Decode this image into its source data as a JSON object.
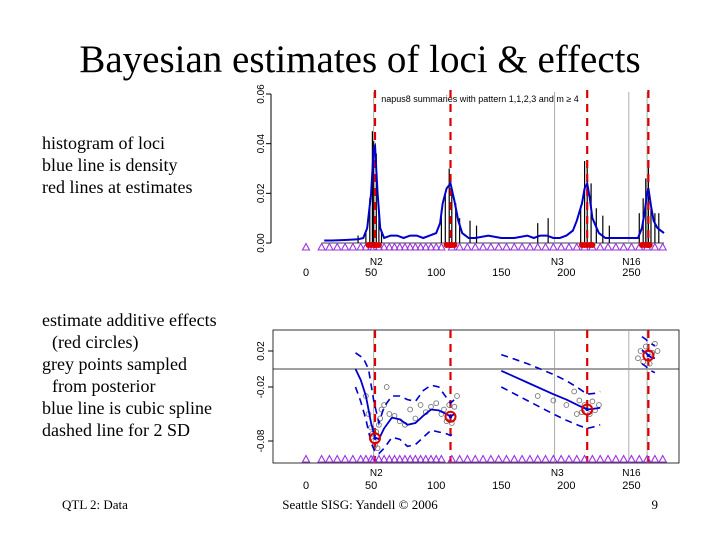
{
  "slide": {
    "title": "Bayesian estimates of  loci & effects",
    "upper_text": [
      "histogram of loci",
      "blue line is density",
      "red lines at estimates"
    ],
    "lower_text": [
      "estimate additive effects",
      "(red circles)",
      "grey points sampled",
      "from posterior",
      "blue line is cubic spline",
      "dashed line for 2 SD"
    ],
    "footer_left": "QTL 2: Data",
    "footer_center": "Seattle SISG: Yandell © 2006",
    "page_number": "9"
  },
  "colors": {
    "density": "#0000cc",
    "estimate": "#dd0000",
    "marker": "#9933dd",
    "posterior": "#777777",
    "axis": "#000000"
  },
  "chart_data": [
    {
      "type": "bar",
      "title": "napus8 summaries with pattern 1,1,2,3 and m ≥ 4",
      "xlim": [
        0,
        275
      ],
      "ylim": [
        0,
        0.06
      ],
      "x_ticks": [
        0,
        50,
        100,
        150,
        200,
        250
      ],
      "y_ticks": [
        0.0,
        0.02,
        0.04,
        0.06
      ],
      "y_tick_labels": [
        "0.00",
        "0.02",
        "0.04",
        "0.06"
      ],
      "chromosome_labels": [
        {
          "x": 54,
          "label": "N2"
        },
        {
          "x": 193,
          "label": "N3"
        },
        {
          "x": 250,
          "label": "N16"
        }
      ],
      "chromosome_boundaries": [
        52,
        191,
        248,
        262
      ],
      "estimates": [
        53,
        111,
        216,
        263
      ],
      "density": {
        "x": [
          14,
          20,
          30,
          40,
          44,
          47,
          50,
          52,
          53,
          55,
          57,
          60,
          65,
          70,
          75,
          80,
          85,
          90,
          95,
          100,
          103,
          105,
          108,
          111,
          114,
          117,
          120,
          125,
          130,
          140,
          150,
          160,
          170,
          175,
          180,
          185,
          190,
          195,
          200,
          205,
          208,
          212,
          214,
          216,
          218,
          220,
          225,
          230,
          235,
          240,
          245,
          250,
          255,
          258,
          260,
          262,
          263,
          265,
          267,
          270,
          275
        ],
        "y": [
          0.001,
          0.001,
          0.0012,
          0.0015,
          0.002,
          0.006,
          0.02,
          0.038,
          0.039,
          0.02,
          0.006,
          0.002,
          0.003,
          0.003,
          0.002,
          0.003,
          0.003,
          0.002,
          0.003,
          0.004,
          0.008,
          0.016,
          0.022,
          0.024,
          0.017,
          0.009,
          0.004,
          0.002,
          0.002,
          0.003,
          0.002,
          0.002,
          0.003,
          0.002,
          0.003,
          0.003,
          0.002,
          0.002,
          0.003,
          0.005,
          0.009,
          0.016,
          0.022,
          0.024,
          0.018,
          0.01,
          0.004,
          0.002,
          0.002,
          0.002,
          0.002,
          0.002,
          0.002,
          0.006,
          0.012,
          0.02,
          0.022,
          0.015,
          0.009,
          0.006,
          0.004
        ]
      },
      "histogram_spikes": [
        {
          "x": 40,
          "y": 0.003
        },
        {
          "x": 46,
          "y": 0.005
        },
        {
          "x": 49,
          "y": 0.018
        },
        {
          "x": 51,
          "y": 0.045
        },
        {
          "x": 52,
          "y": 0.041
        },
        {
          "x": 54,
          "y": 0.036
        },
        {
          "x": 56,
          "y": 0.012
        },
        {
          "x": 58,
          "y": 0.005
        },
        {
          "x": 104,
          "y": 0.013
        },
        {
          "x": 107,
          "y": 0.02
        },
        {
          "x": 110,
          "y": 0.03
        },
        {
          "x": 112,
          "y": 0.022
        },
        {
          "x": 115,
          "y": 0.016
        },
        {
          "x": 118,
          "y": 0.01
        },
        {
          "x": 126,
          "y": 0.009
        },
        {
          "x": 131,
          "y": 0.007
        },
        {
          "x": 178,
          "y": 0.008
        },
        {
          "x": 186,
          "y": 0.01
        },
        {
          "x": 211,
          "y": 0.015
        },
        {
          "x": 214,
          "y": 0.033
        },
        {
          "x": 216,
          "y": 0.032
        },
        {
          "x": 219,
          "y": 0.024
        },
        {
          "x": 223,
          "y": 0.014
        },
        {
          "x": 228,
          "y": 0.011
        },
        {
          "x": 233,
          "y": 0.007
        },
        {
          "x": 256,
          "y": 0.012
        },
        {
          "x": 259,
          "y": 0.018
        },
        {
          "x": 261,
          "y": 0.026
        },
        {
          "x": 263,
          "y": 0.031
        },
        {
          "x": 265,
          "y": 0.014
        },
        {
          "x": 268,
          "y": 0.012
        },
        {
          "x": 271,
          "y": 0.012
        }
      ],
      "estimate_points_x": [
        48,
        50,
        52,
        53,
        54,
        56,
        108,
        110,
        111,
        112,
        114,
        212,
        214,
        216,
        218,
        220,
        258,
        260,
        262,
        263,
        264
      ],
      "marker_positions": [
        0,
        12,
        18,
        24,
        30,
        36,
        42,
        46,
        50,
        52,
        56,
        60,
        64,
        68,
        72,
        76,
        80,
        84,
        88,
        92,
        96,
        100,
        104,
        112,
        118,
        124,
        130,
        136,
        142,
        148,
        154,
        160,
        166,
        172,
        178,
        184,
        190,
        196,
        202,
        208,
        214,
        220,
        226,
        232,
        238,
        244,
        250,
        256,
        262,
        268,
        274
      ]
    },
    {
      "type": "scatter",
      "xlim": [
        0,
        275
      ],
      "ylim": [
        -0.1,
        0.04
      ],
      "x_ticks": [
        0,
        50,
        100,
        150,
        200,
        250
      ],
      "y_ticks": [
        -0.08,
        -0.02,
        0.02
      ],
      "y_tick_labels": [
        "-0.08",
        "-0.02",
        "0.02"
      ],
      "reference_y": 0.0,
      "chromosome_labels": [
        {
          "x": 54,
          "label": "N2"
        },
        {
          "x": 193,
          "label": "N3"
        },
        {
          "x": 250,
          "label": "N16"
        }
      ],
      "chromosome_boundaries": [
        52,
        191,
        248,
        262
      ],
      "estimates": [
        53,
        111,
        216,
        263
      ],
      "effects": [
        {
          "x": 53,
          "y": -0.077
        },
        {
          "x": 111,
          "y": -0.053
        },
        {
          "x": 216,
          "y": -0.045
        },
        {
          "x": 263,
          "y": 0.015
        }
      ],
      "spline": {
        "segments": [
          {
            "x": [
              38,
              42,
              46,
              50,
              53,
              56,
              60,
              66,
              72,
              78,
              84,
              90,
              96,
              102,
              108,
              111,
              114
            ],
            "y": [
              0,
              -0.012,
              -0.03,
              -0.06,
              -0.076,
              -0.078,
              -0.066,
              -0.054,
              -0.056,
              -0.062,
              -0.06,
              -0.052,
              -0.045,
              -0.046,
              -0.05,
              -0.053,
              -0.05
            ]
          },
          {
            "x": [
              150,
              170,
              190,
              200,
              210,
              216,
              222,
              226
            ],
            "y": [
              -0.002,
              -0.015,
              -0.028,
              -0.034,
              -0.041,
              -0.045,
              -0.044,
              -0.043
            ]
          },
          {
            "x": [
              258,
              261,
              263,
              265,
              268
            ],
            "y": [
              0.021,
              0.018,
              0.015,
              0.013,
              0.012
            ]
          }
        ],
        "upper_sd": [
          {
            "x": [
              38,
              44,
              48,
              52,
              56,
              60,
              66,
              72,
              78,
              84,
              90,
              96,
              102,
              108,
              111,
              114
            ],
            "y": [
              0.018,
              0.012,
              0.0,
              -0.035,
              -0.06,
              -0.042,
              -0.03,
              -0.03,
              -0.034,
              -0.036,
              -0.024,
              -0.018,
              -0.02,
              -0.032,
              -0.038,
              -0.034
            ]
          },
          {
            "x": [
              150,
              170,
              190,
              200,
              210,
              216,
              222,
              226
            ],
            "y": [
              0.016,
              0.006,
              -0.006,
              -0.013,
              -0.022,
              -0.028,
              -0.027,
              -0.025
            ]
          },
          {
            "x": [
              258,
              261,
              263,
              265,
              268
            ],
            "y": [
              0.036,
              0.033,
              0.03,
              0.028,
              0.026
            ]
          }
        ],
        "lower_sd": [
          {
            "x": [
              38,
              42,
              46,
              50,
              53,
              56,
              60,
              66,
              72,
              78,
              84,
              90,
              96,
              102,
              108,
              111,
              114
            ],
            "y": [
              -0.02,
              -0.036,
              -0.056,
              -0.082,
              -0.092,
              -0.094,
              -0.088,
              -0.076,
              -0.078,
              -0.086,
              -0.084,
              -0.076,
              -0.068,
              -0.07,
              -0.072,
              -0.074,
              -0.07
            ]
          },
          {
            "x": [
              150,
              170,
              190,
              200,
              210,
              216,
              222,
              226
            ],
            "y": [
              -0.02,
              -0.035,
              -0.05,
              -0.057,
              -0.063,
              -0.066,
              -0.064,
              -0.062
            ]
          },
          {
            "x": [
              258,
              261,
              263,
              265,
              268
            ],
            "y": [
              0.006,
              0.003,
              0.0,
              -0.002,
              -0.004
            ]
          }
        ]
      },
      "posterior_samples": [
        {
          "x": 46,
          "y": -0.03
        },
        {
          "x": 48,
          "y": -0.05
        },
        {
          "x": 50,
          "y": -0.065
        },
        {
          "x": 51,
          "y": -0.072
        },
        {
          "x": 52,
          "y": -0.08
        },
        {
          "x": 53,
          "y": -0.085
        },
        {
          "x": 54,
          "y": -0.07
        },
        {
          "x": 55,
          "y": -0.088
        },
        {
          "x": 56,
          "y": -0.062
        },
        {
          "x": 57,
          "y": -0.055
        },
        {
          "x": 58,
          "y": -0.045
        },
        {
          "x": 60,
          "y": -0.04
        },
        {
          "x": 62,
          "y": -0.02
        },
        {
          "x": 64,
          "y": -0.05
        },
        {
          "x": 68,
          "y": -0.052
        },
        {
          "x": 72,
          "y": -0.058
        },
        {
          "x": 76,
          "y": -0.062
        },
        {
          "x": 80,
          "y": -0.045
        },
        {
          "x": 84,
          "y": -0.055
        },
        {
          "x": 88,
          "y": -0.04
        },
        {
          "x": 92,
          "y": -0.048
        },
        {
          "x": 96,
          "y": -0.042
        },
        {
          "x": 100,
          "y": -0.038
        },
        {
          "x": 104,
          "y": -0.05
        },
        {
          "x": 106,
          "y": -0.045
        },
        {
          "x": 108,
          "y": -0.058
        },
        {
          "x": 110,
          "y": -0.04
        },
        {
          "x": 112,
          "y": -0.06
        },
        {
          "x": 114,
          "y": -0.042
        },
        {
          "x": 116,
          "y": -0.03
        },
        {
          "x": 178,
          "y": -0.03
        },
        {
          "x": 190,
          "y": -0.035
        },
        {
          "x": 200,
          "y": -0.04
        },
        {
          "x": 206,
          "y": -0.025
        },
        {
          "x": 208,
          "y": -0.05
        },
        {
          "x": 210,
          "y": -0.035
        },
        {
          "x": 212,
          "y": -0.048
        },
        {
          "x": 214,
          "y": -0.04
        },
        {
          "x": 218,
          "y": -0.05
        },
        {
          "x": 220,
          "y": -0.036
        },
        {
          "x": 222,
          "y": -0.046
        },
        {
          "x": 225,
          "y": -0.04
        },
        {
          "x": 255,
          "y": 0.012
        },
        {
          "x": 257,
          "y": 0.02
        },
        {
          "x": 259,
          "y": 0.008
        },
        {
          "x": 261,
          "y": 0.025
        },
        {
          "x": 264,
          "y": 0.006
        },
        {
          "x": 266,
          "y": 0.018
        },
        {
          "x": 268,
          "y": 0.028
        },
        {
          "x": 270,
          "y": 0.02
        }
      ],
      "marker_positions": [
        0,
        12,
        18,
        24,
        30,
        36,
        42,
        46,
        50,
        52,
        56,
        60,
        64,
        68,
        72,
        76,
        80,
        84,
        88,
        92,
        96,
        100,
        104,
        112,
        118,
        124,
        130,
        136,
        142,
        148,
        154,
        160,
        166,
        172,
        178,
        184,
        190,
        196,
        202,
        208,
        214,
        220,
        226,
        232,
        238,
        244,
        250,
        256,
        262,
        268,
        274
      ]
    }
  ]
}
